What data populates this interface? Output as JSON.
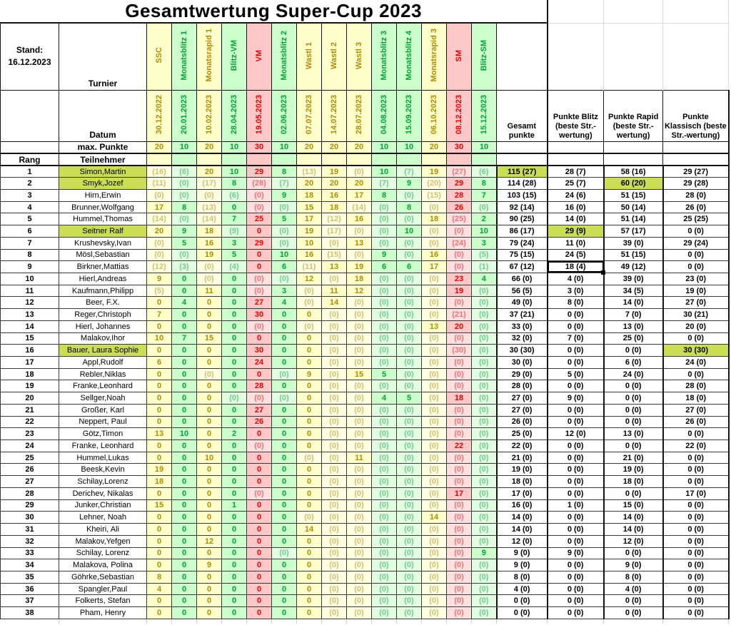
{
  "title": "Gesamtwertung Super-Cup 2023",
  "stand_label": "Stand:",
  "stand_date": "16.12.2023",
  "header": {
    "turnier_label": "Turnier",
    "datum_label": "Datum",
    "max_punkte_label": "max. Punkte",
    "rang_label": "Rang",
    "teilnehmer_label": "Teilnehmer"
  },
  "summary_headers": [
    "Gesamt punkte",
    "Punkte Blitz (beste Str.-wertung)",
    "Punkte Rapid (beste Str.-wertung)",
    "Punkte Klassisch (beste Str.-wertung)"
  ],
  "colors": {
    "rapid_bg": "#ffffcc",
    "rapid_text": "#b18a00",
    "blitz_bg": "#ccffcc",
    "blitz_text": "#00a233",
    "classic_bg": "#ffc8c8",
    "classic_text": "#e80000",
    "highlight": "#c9dd55"
  },
  "tournaments": [
    {
      "name": "SSC",
      "date": "30.12.2022",
      "max": "20",
      "type": "rapid"
    },
    {
      "name": "Monatsblitz 1",
      "date": "20.01.2023",
      "max": "10",
      "type": "blitz"
    },
    {
      "name": "Monatsrapid 1",
      "date": "10.02.2023",
      "max": "20",
      "type": "rapid"
    },
    {
      "name": "Blitz-VM",
      "date": "28.04.2023",
      "max": "10",
      "type": "blitz"
    },
    {
      "name": "VM",
      "date": "19.05.2023",
      "max": "30",
      "type": "classic"
    },
    {
      "name": "Monatsblitz 2",
      "date": "02.06.2023",
      "max": "10",
      "type": "blitz"
    },
    {
      "name": "Wastl 1",
      "date": "07.07.2023",
      "max": "20",
      "type": "rapid"
    },
    {
      "name": "Wastl 2",
      "date": "14.07.2023",
      "max": "20",
      "type": "rapid"
    },
    {
      "name": "Wastl 3",
      "date": "28.07.2023",
      "max": "20",
      "type": "rapid"
    },
    {
      "name": "Monatsblitz 3",
      "date": "04.08.2023",
      "max": "10",
      "type": "blitz"
    },
    {
      "name": "Monatsblitz 4",
      "date": "15.09.2023",
      "max": "10",
      "type": "blitz"
    },
    {
      "name": "Monatsrapid 3",
      "date": "06.10.2023",
      "max": "20",
      "type": "rapid"
    },
    {
      "name": "SM",
      "date": "08.12.2023",
      "max": "30",
      "type": "classic"
    },
    {
      "name": "Blitz-SM",
      "date": "15.12.2023",
      "max": "10",
      "type": "blitz"
    }
  ],
  "rows": [
    {
      "rank": "1",
      "name": "Simon,Martin",
      "name_hl": true,
      "scores": [
        "(16)",
        "(6)",
        "20",
        "10",
        "29",
        "8",
        "(13)",
        "19",
        "(0)",
        "10",
        "(7)",
        "19",
        "(27)",
        "(6)"
      ],
      "gesamt": "115 (27)",
      "blitz": "28 (7)",
      "rapid": "58 (16)",
      "klassisch": "29 (27)",
      "hl": "gesamt"
    },
    {
      "rank": "2",
      "name": "Smyk,Jozef",
      "name_hl": true,
      "scores": [
        "(11)",
        "(0)",
        "(17)",
        "8",
        "(28)",
        "(7)",
        "20",
        "20",
        "20",
        "(7)",
        "9",
        "(20)",
        "29",
        "8"
      ],
      "gesamt": "114 (28)",
      "blitz": "25 (7)",
      "rapid": "60 (20)",
      "klassisch": "29 (28)",
      "hl": "rapid"
    },
    {
      "rank": "3",
      "name": "Hirn,Erwin",
      "scores": [
        "(0)",
        "(0)",
        "(0)",
        "(6)",
        "(0)",
        "9",
        "18",
        "16",
        "17",
        "8",
        "(0)",
        "(15)",
        "28",
        "7"
      ],
      "gesamt": "103 (15)",
      "blitz": "24 (6)",
      "rapid": "51 (15)",
      "klassisch": "28 (0)"
    },
    {
      "rank": "4",
      "name": "Brunner,Wolfgang",
      "scores": [
        "17",
        "8",
        "(13)",
        "0",
        "(0)",
        "(0)",
        "15",
        "18",
        "(14)",
        "(0)",
        "8",
        "(0)",
        "26",
        "(0)"
      ],
      "gesamt": "92 (14)",
      "blitz": "16 (0)",
      "rapid": "50 (14)",
      "klassisch": "26 (0)"
    },
    {
      "rank": "5",
      "name": "Hummel,Thomas",
      "scores": [
        "(14)",
        "(0)",
        "(14)",
        "7",
        "25",
        "5",
        "17",
        "(12)",
        "16",
        "(0)",
        "(0)",
        "18",
        "(25)",
        "2"
      ],
      "gesamt": "90 (25)",
      "blitz": "14 (0)",
      "rapid": "51 (14)",
      "klassisch": "25 (25)"
    },
    {
      "rank": "6",
      "name": "Seitner Ralf",
      "name_hl": true,
      "scores": [
        "20",
        "9",
        "18",
        "(9)",
        "0",
        "(0)",
        "19",
        "(17)",
        "(0)",
        "(0)",
        "10",
        "(0)",
        "(0)",
        "10"
      ],
      "gesamt": "86 (17)",
      "blitz": "29 (9)",
      "rapid": "57 (17)",
      "klassisch": "0 (0)",
      "hl": "blitz"
    },
    {
      "rank": "7",
      "name": "Krushevsky,Ivan",
      "scores": [
        "(0)",
        "5",
        "16",
        "3",
        "29",
        "(0)",
        "10",
        "(0)",
        "13",
        "(0)",
        "(0)",
        "(0)",
        "(24)",
        "3"
      ],
      "gesamt": "79 (24)",
      "blitz": "11 (0)",
      "rapid": "39 (0)",
      "klassisch": "29 (24)"
    },
    {
      "rank": "8",
      "name": "Mösl,Sebastian",
      "scores": [
        "(0)",
        "(0)",
        "19",
        "5",
        "0",
        "10",
        "16",
        "(15)",
        "(0)",
        "9",
        "(0)",
        "16",
        "(0)",
        "(5)"
      ],
      "gesamt": "75 (15)",
      "blitz": "24 (5)",
      "rapid": "51 (15)",
      "klassisch": "0 (0)"
    },
    {
      "rank": "9",
      "name": "Birkner,Mattias",
      "scores": [
        "(12)",
        "(3)",
        "(0)",
        "(4)",
        "0",
        "6",
        "(11)",
        "13",
        "19",
        "6",
        "6",
        "17",
        "(0)",
        "(1)"
      ],
      "gesamt": "67 (12)",
      "blitz": "18 (4)",
      "rapid": "49 (12)",
      "klassisch": "0 (0)",
      "sel": "blitz"
    },
    {
      "rank": "10",
      "name": "Hierl,Andreas",
      "scores": [
        "9",
        "0",
        "(0)",
        "0",
        "(0)",
        "(0)",
        "12",
        "(0)",
        "18",
        "(0)",
        "(0)",
        "(0)",
        "23",
        "4"
      ],
      "gesamt": "66 (0)",
      "blitz": "4 (0)",
      "rapid": "39 (0)",
      "klassisch": "23 (0)"
    },
    {
      "rank": "11",
      "name": "Kaufmann,Philipp",
      "scores": [
        "(5)",
        "0",
        "11",
        "0",
        "(0)",
        "3",
        "(0)",
        "11",
        "12",
        "(0)",
        "(0)",
        "(0)",
        "19",
        "(0)"
      ],
      "gesamt": "56 (5)",
      "blitz": "3 (0)",
      "rapid": "34 (5)",
      "klassisch": "19 (0)"
    },
    {
      "rank": "12",
      "name": "Beer, F.X.",
      "scores": [
        "0",
        "4",
        "0",
        "0",
        "27",
        "4",
        "(0)",
        "14",
        "(0)",
        "(0)",
        "(0)",
        "(0)",
        "(0)",
        "(0)"
      ],
      "gesamt": "49 (0)",
      "blitz": "8 (0)",
      "rapid": "14 (0)",
      "klassisch": "27 (0)"
    },
    {
      "rank": "13",
      "name": "Reger,Christoph",
      "scores": [
        "7",
        "0",
        "0",
        "0",
        "30",
        "0",
        "0",
        "(0)",
        "(0)",
        "(0)",
        "(0)",
        "(0)",
        "(21)",
        "(0)"
      ],
      "gesamt": "37 (21)",
      "blitz": "0 (0)",
      "rapid": "7 (0)",
      "klassisch": "30 (21)"
    },
    {
      "rank": "14",
      "name": "Hierl, Johannes",
      "scores": [
        "0",
        "0",
        "0",
        "0",
        "(0)",
        "0",
        "(0)",
        "(0)",
        "(0)",
        "(0)",
        "(0)",
        "13",
        "20",
        "(0)"
      ],
      "gesamt": "33 (0)",
      "blitz": "0 (0)",
      "rapid": "13 (0)",
      "klassisch": "20 (0)"
    },
    {
      "rank": "15",
      "name": "Malakov,Ihor",
      "scores": [
        "10",
        "7",
        "15",
        "0",
        "0",
        "0",
        "0",
        "(0)",
        "(0)",
        "(0)",
        "(0)",
        "(0)",
        "(0)",
        "(0)"
      ],
      "gesamt": "32 (0)",
      "blitz": "7 (0)",
      "rapid": "25 (0)",
      "klassisch": "0 (0)"
    },
    {
      "rank": "16",
      "name": "Bauer, Laura Sophie",
      "name_hl": true,
      "scores": [
        "0",
        "0",
        "0",
        "0",
        "30",
        "0",
        "0",
        "(0)",
        "(0)",
        "(0)",
        "(0)",
        "(0)",
        "(30)",
        "(0)"
      ],
      "gesamt": "30 (30)",
      "blitz": "0 (0)",
      "rapid": "0 (0)",
      "klassisch": "30 (30)",
      "hl": "klassisch"
    },
    {
      "rank": "17",
      "name": "Appl,Rudolf",
      "scores": [
        "6",
        "0",
        "0",
        "0",
        "24",
        "0",
        "0",
        "(0)",
        "(0)",
        "(0)",
        "(0)",
        "(0)",
        "(0)",
        "(0)"
      ],
      "gesamt": "30 (0)",
      "blitz": "0 (0)",
      "rapid": "6 (0)",
      "klassisch": "24 (0)"
    },
    {
      "rank": "18",
      "name": "Rebler,Niklas",
      "scores": [
        "0",
        "0",
        "(0)",
        "0",
        "0",
        "(0)",
        "9",
        "(0)",
        "15",
        "5",
        "(0)",
        "(0)",
        "(0)",
        "(0)"
      ],
      "gesamt": "29 (0)",
      "blitz": "5 (0)",
      "rapid": "24 (0)",
      "klassisch": "0 (0)"
    },
    {
      "rank": "19",
      "name": "Franke,Leonhard",
      "scores": [
        "0",
        "0",
        "0",
        "0",
        "28",
        "0",
        "0",
        "(0)",
        "(0)",
        "(0)",
        "(0)",
        "(0)",
        "(0)",
        "(0)"
      ],
      "gesamt": "28 (0)",
      "blitz": "0 (0)",
      "rapid": "0 (0)",
      "klassisch": "28 (0)"
    },
    {
      "rank": "20",
      "name": "Sellger,Noah",
      "scores": [
        "0",
        "0",
        "0",
        "(0)",
        "(0)",
        "(0)",
        "0",
        "(0)",
        "(0)",
        "4",
        "5",
        "(0)",
        "18",
        "(0)"
      ],
      "gesamt": "27 (0)",
      "blitz": "9 (0)",
      "rapid": "0 (0)",
      "klassisch": "18 (0)"
    },
    {
      "rank": "21",
      "name": "Großer, Karl",
      "scores": [
        "0",
        "0",
        "0",
        "0",
        "27",
        "0",
        "0",
        "(0)",
        "(0)",
        "(0)",
        "(0)",
        "(0)",
        "(0)",
        "(0)"
      ],
      "gesamt": "27 (0)",
      "blitz": "0 (0)",
      "rapid": "0 (0)",
      "klassisch": "27 (0)"
    },
    {
      "rank": "22",
      "name": "Neppert, Paul",
      "scores": [
        "0",
        "0",
        "0",
        "0",
        "26",
        "0",
        "0",
        "(0)",
        "(0)",
        "(0)",
        "(0)",
        "(0)",
        "(0)",
        "(0)"
      ],
      "gesamt": "26 (0)",
      "blitz": "0 (0)",
      "rapid": "0 (0)",
      "klassisch": "26 (0)"
    },
    {
      "rank": "23",
      "name": "Götz,Timon",
      "scores": [
        "13",
        "10",
        "0",
        "2",
        "0",
        "0",
        "0",
        "(0)",
        "(0)",
        "(0)",
        "(0)",
        "(0)",
        "(0)",
        "(0)"
      ],
      "gesamt": "25 (0)",
      "blitz": "12 (0)",
      "rapid": "13 (0)",
      "klassisch": "0 (0)"
    },
    {
      "rank": "24",
      "name": "Franke, Leonhard",
      "scores": [
        "0",
        "0",
        "0",
        "0",
        "(0)",
        "0",
        "0",
        "(0)",
        "(0)",
        "(0)",
        "(0)",
        "(0)",
        "22",
        "(0)"
      ],
      "gesamt": "22 (0)",
      "blitz": "0 (0)",
      "rapid": "0 (0)",
      "klassisch": "22 (0)"
    },
    {
      "rank": "25",
      "name": "Hummel,Lukas",
      "scores": [
        "0",
        "0",
        "10",
        "0",
        "0",
        "0",
        "(0)",
        "(0)",
        "11",
        "(0)",
        "(0)",
        "(0)",
        "(0)",
        "(0)"
      ],
      "gesamt": "21 (0)",
      "blitz": "0 (0)",
      "rapid": "21 (0)",
      "klassisch": "0 (0)"
    },
    {
      "rank": "26",
      "name": "Beesk,Kevin",
      "scores": [
        "19",
        "0",
        "0",
        "0",
        "0",
        "0",
        "0",
        "(0)",
        "(0)",
        "(0)",
        "(0)",
        "(0)",
        "(0)",
        "(0)"
      ],
      "gesamt": "19 (0)",
      "blitz": "0 (0)",
      "rapid": "19 (0)",
      "klassisch": "0 (0)"
    },
    {
      "rank": "27",
      "name": "Schilay,Lorenz",
      "scores": [
        "18",
        "0",
        "0",
        "0",
        "0",
        "0",
        "0",
        "(0)",
        "(0)",
        "(0)",
        "(0)",
        "(0)",
        "(0)",
        "(0)"
      ],
      "gesamt": "18 (0)",
      "blitz": "0 (0)",
      "rapid": "18 (0)",
      "klassisch": "0 (0)"
    },
    {
      "rank": "28",
      "name": "Derichev, Nikalas",
      "scores": [
        "0",
        "0",
        "0",
        "0",
        "(0)",
        "0",
        "0",
        "(0)",
        "(0)",
        "(0)",
        "(0)",
        "(0)",
        "17",
        "(0)"
      ],
      "gesamt": "17 (0)",
      "blitz": "0 (0)",
      "rapid": "0 (0)",
      "klassisch": "17 (0)"
    },
    {
      "rank": "29",
      "name": "Junker,Christian",
      "scores": [
        "15",
        "0",
        "0",
        "1",
        "0",
        "0",
        "0",
        "(0)",
        "(0)",
        "(0)",
        "(0)",
        "(0)",
        "(0)",
        "(0)"
      ],
      "gesamt": "16 (0)",
      "blitz": "1 (0)",
      "rapid": "15 (0)",
      "klassisch": "0 (0)"
    },
    {
      "rank": "30",
      "name": "Lehner, Noah",
      "scores": [
        "0",
        "0",
        "0",
        "0",
        "0",
        "0",
        "(0)",
        "(0)",
        "(0)",
        "(0)",
        "(0)",
        "14",
        "(0)",
        "(0)"
      ],
      "gesamt": "14 (0)",
      "blitz": "0 (0)",
      "rapid": "14 (0)",
      "klassisch": "0 (0)"
    },
    {
      "rank": "31",
      "name": "Kheiri, Ali",
      "scores": [
        "0",
        "0",
        "0",
        "0",
        "0",
        "0",
        "14",
        "(0)",
        "(0)",
        "(0)",
        "(0)",
        "(0)",
        "(0)",
        "(0)"
      ],
      "gesamt": "14 (0)",
      "blitz": "0 (0)",
      "rapid": "14 (0)",
      "klassisch": "0 (0)"
    },
    {
      "rank": "32",
      "name": "Malakov,Yefgen",
      "scores": [
        "0",
        "0",
        "12",
        "0",
        "0",
        "0",
        "0",
        "(0)",
        "(0)",
        "(0)",
        "(0)",
        "(0)",
        "(0)",
        "(0)"
      ],
      "gesamt": "12 (0)",
      "blitz": "0 (0)",
      "rapid": "12 (0)",
      "klassisch": "0 (0)"
    },
    {
      "rank": "33",
      "name": "Schilay, Lorenz",
      "scores": [
        "0",
        "0",
        "0",
        "0",
        "0",
        "(0)",
        "0",
        "(0)",
        "(0)",
        "(0)",
        "(0)",
        "(0)",
        "(0)",
        "9"
      ],
      "gesamt": "9 (0)",
      "blitz": "9 (0)",
      "rapid": "0 (0)",
      "klassisch": "0 (0)"
    },
    {
      "rank": "34",
      "name": "Malakova, Polina",
      "scores": [
        "0",
        "0",
        "9",
        "0",
        "0",
        "0",
        "0",
        "(0)",
        "(0)",
        "(0)",
        "(0)",
        "(0)",
        "(0)",
        "(0)"
      ],
      "gesamt": "9 (0)",
      "blitz": "0 (0)",
      "rapid": "9 (0)",
      "klassisch": "0 (0)"
    },
    {
      "rank": "35",
      "name": "Göhrke,Sebastian",
      "scores": [
        "8",
        "0",
        "0",
        "0",
        "0",
        "0",
        "0",
        "(0)",
        "(0)",
        "(0)",
        "(0)",
        "(0)",
        "(0)",
        "(0)"
      ],
      "gesamt": "8 (0)",
      "blitz": "0 (0)",
      "rapid": "8 (0)",
      "klassisch": "0 (0)"
    },
    {
      "rank": "36",
      "name": "Spangler,Paul",
      "scores": [
        "4",
        "0",
        "0",
        "0",
        "0",
        "0",
        "0",
        "(0)",
        "(0)",
        "(0)",
        "(0)",
        "(0)",
        "(0)",
        "(0)"
      ],
      "gesamt": "4 (0)",
      "blitz": "0 (0)",
      "rapid": "4 (0)",
      "klassisch": "0 (0)"
    },
    {
      "rank": "37",
      "name": "Folkerts, Stefan",
      "scores": [
        "0",
        "0",
        "0",
        "0",
        "0",
        "0",
        "0",
        "(0)",
        "(0)",
        "(0)",
        "(0)",
        "(0)",
        "(0)",
        "(0)"
      ],
      "gesamt": "0 (0)",
      "blitz": "0 (0)",
      "rapid": "0 (0)",
      "klassisch": "0 (0)"
    },
    {
      "rank": "38",
      "name": "Pham, Henry",
      "scores": [
        "0",
        "0",
        "0",
        "0",
        "0",
        "0",
        "0",
        "(0)",
        "(0)",
        "(0)",
        "(0)",
        "(0)",
        "(0)",
        "(0)"
      ],
      "gesamt": "0 (0)",
      "blitz": "0 (0)",
      "rapid": "0 (0)",
      "klassisch": "0 (0)"
    }
  ]
}
